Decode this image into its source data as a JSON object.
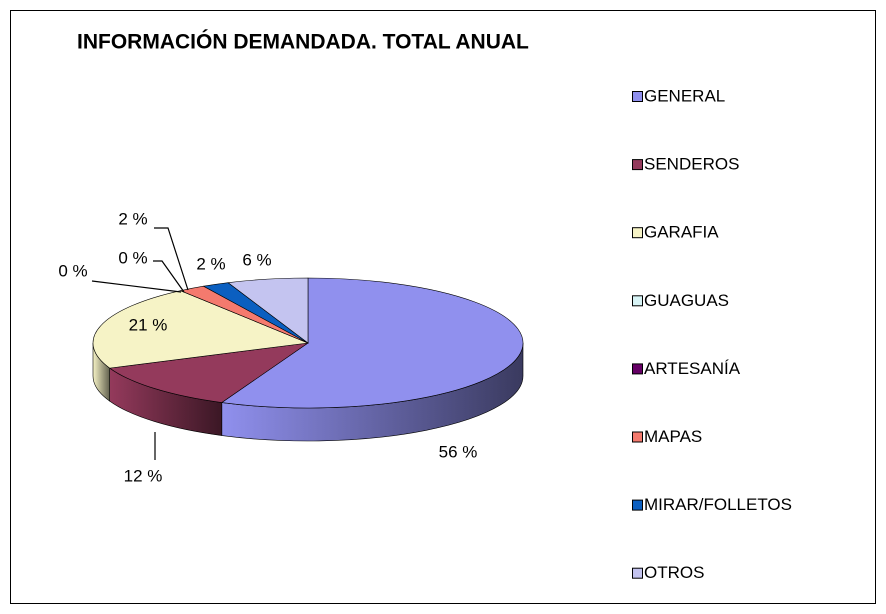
{
  "chart_data": {
    "type": "pie",
    "title": "INFORMACIÓN DEMANDADA. TOTAL ANUAL",
    "categories": [
      "GENERAL",
      "SENDEROS",
      "GARAFIA",
      "GUAGUAS",
      "ARTESANÍA",
      "MAPAS",
      "MIRAR/FOLLETOS",
      "OTROS"
    ],
    "values": [
      56,
      12,
      21,
      0,
      0,
      2,
      2,
      6
    ],
    "value_labels": [
      "56 %",
      "12 %",
      "21 %",
      "0 %",
      "0 %",
      "2 %",
      "2 %",
      "6 %"
    ],
    "colors": [
      "#9090ee",
      "#943a5c",
      "#f6f3c6",
      "#d8f4f6",
      "#660066",
      "#f47a6e",
      "#0b5fc0",
      "#c4c4f0"
    ],
    "legend": "right"
  }
}
